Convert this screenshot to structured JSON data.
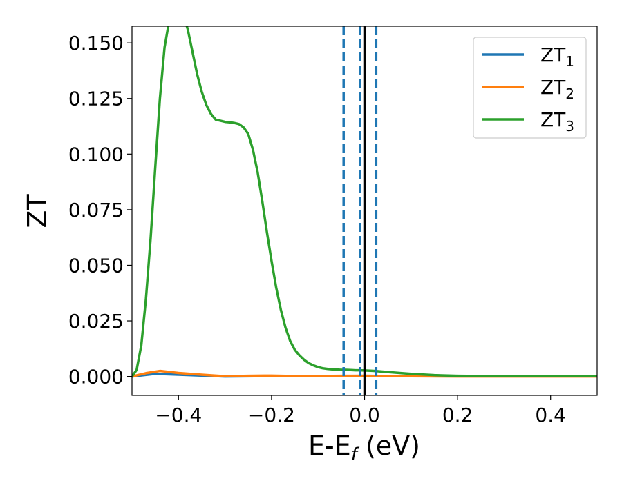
{
  "chart_data": {
    "type": "line",
    "title": "",
    "xlabel": "E-E_f (eV)",
    "xlabel_parts": {
      "main": "E-E",
      "sub": "f",
      "tail": " (eV)"
    },
    "ylabel": "ZT",
    "xlim": [
      -0.5,
      0.5
    ],
    "ylim": [
      -0.0085,
      0.1575
    ],
    "xticks": [
      -0.4,
      -0.2,
      0.0,
      0.2,
      0.4
    ],
    "xtick_labels": [
      "−0.4",
      "−0.2",
      "0.0",
      "0.2",
      "0.4"
    ],
    "yticks": [
      0.0,
      0.025,
      0.05,
      0.075,
      0.1,
      0.125,
      0.15
    ],
    "ytick_labels": [
      "0.000",
      "0.025",
      "0.050",
      "0.075",
      "0.100",
      "0.125",
      "0.150"
    ],
    "grid": false,
    "legend_position": "top-right",
    "series": [
      {
        "name": "ZT_1",
        "label_main": "ZT",
        "label_sub": "1",
        "color": "#1f77b4",
        "x": [
          -0.5,
          -0.45,
          -0.4,
          -0.3,
          -0.2,
          -0.1,
          0.0,
          0.1,
          0.2,
          0.3,
          0.4,
          0.5
        ],
        "values": [
          0.0,
          0.0012,
          0.0008,
          0.0,
          0.0002,
          0.0002,
          0.0003,
          0.0002,
          0.0002,
          0.0001,
          0.0001,
          0.0001
        ]
      },
      {
        "name": "ZT_2",
        "label_main": "ZT",
        "label_sub": "2",
        "color": "#ff7f0e",
        "x": [
          -0.5,
          -0.47,
          -0.44,
          -0.4,
          -0.35,
          -0.3,
          -0.25,
          -0.2,
          -0.15,
          -0.1,
          -0.05,
          0.0,
          0.05,
          0.1,
          0.2,
          0.3,
          0.4,
          0.5
        ],
        "values": [
          0.0,
          0.0015,
          0.0025,
          0.0016,
          0.0008,
          0.0001,
          0.0003,
          0.0004,
          0.0002,
          0.0002,
          0.0003,
          0.0003,
          0.0002,
          0.0001,
          0.0,
          0.0,
          0.0,
          0.0
        ]
      },
      {
        "name": "ZT_3",
        "label_main": "ZT",
        "label_sub": "3",
        "color": "#2ca02c",
        "x": [
          -0.5,
          -0.49,
          -0.48,
          -0.47,
          -0.46,
          -0.45,
          -0.44,
          -0.43,
          -0.42,
          -0.41,
          -0.4,
          -0.39,
          -0.38,
          -0.37,
          -0.36,
          -0.35,
          -0.34,
          -0.33,
          -0.32,
          -0.31,
          -0.3,
          -0.29,
          -0.28,
          -0.27,
          -0.26,
          -0.25,
          -0.24,
          -0.23,
          -0.22,
          -0.21,
          -0.2,
          -0.19,
          -0.18,
          -0.17,
          -0.16,
          -0.15,
          -0.14,
          -0.13,
          -0.12,
          -0.11,
          -0.1,
          -0.09,
          -0.08,
          -0.07,
          -0.06,
          -0.05,
          -0.04,
          -0.03,
          -0.02,
          -0.01,
          0.0,
          0.02,
          0.05,
          0.08,
          0.1,
          0.15,
          0.2,
          0.3,
          0.4,
          0.5
        ],
        "values": [
          0.0,
          0.003,
          0.014,
          0.035,
          0.062,
          0.094,
          0.125,
          0.148,
          0.16,
          0.1645,
          0.165,
          0.163,
          0.156,
          0.146,
          0.136,
          0.128,
          0.122,
          0.118,
          0.1155,
          0.115,
          0.1145,
          0.1143,
          0.114,
          0.1135,
          0.112,
          0.109,
          0.102,
          0.092,
          0.079,
          0.065,
          0.052,
          0.04,
          0.03,
          0.022,
          0.016,
          0.012,
          0.0095,
          0.0075,
          0.006,
          0.005,
          0.0042,
          0.0037,
          0.0034,
          0.0032,
          0.0031,
          0.003,
          0.003,
          0.0029,
          0.0028,
          0.0028,
          0.0027,
          0.0025,
          0.002,
          0.0015,
          0.0012,
          0.0006,
          0.0003,
          0.0001,
          0.0001,
          0.0001
        ]
      }
    ],
    "vertical_lines": [
      {
        "x": -0.045,
        "style": "dashed",
        "color": "#1f77b4"
      },
      {
        "x": -0.01,
        "style": "dashed",
        "color": "#1f77b4"
      },
      {
        "x": 0.025,
        "style": "dashed",
        "color": "#1f77b4"
      },
      {
        "x": 0.0,
        "style": "solid",
        "color": "#000000"
      }
    ]
  }
}
